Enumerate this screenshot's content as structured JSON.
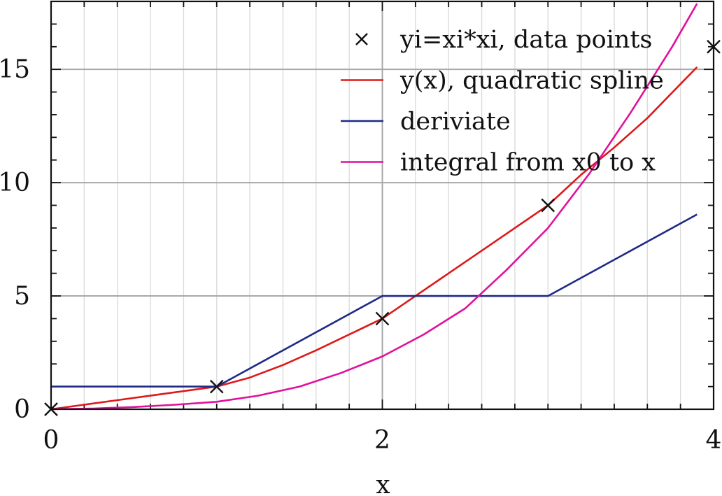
{
  "chart_data": {
    "type": "line",
    "title": "",
    "xlabel": "x",
    "ylabel": "",
    "xlim": [
      0,
      4
    ],
    "ylim": [
      0,
      18
    ],
    "grid": "major and minor",
    "legend_position": "top-right",
    "x_ticks": [
      {
        "value": 0,
        "label": "0"
      },
      {
        "value": 2,
        "label": "2"
      },
      {
        "value": 4,
        "label": "4"
      }
    ],
    "y_ticks": [
      {
        "value": 0,
        "label": "0"
      },
      {
        "value": 5,
        "label": "5"
      },
      {
        "value": 10,
        "label": "10"
      },
      {
        "value": 15,
        "label": "15"
      }
    ],
    "series": [
      {
        "name": "yi=xi*xi, data points",
        "kind": "markers",
        "marker": "x",
        "color": "#111111",
        "points": [
          [
            0,
            0
          ],
          [
            1,
            1
          ],
          [
            2,
            4
          ],
          [
            3,
            9
          ],
          [
            4,
            16
          ]
        ]
      },
      {
        "name": "y(x), quadratic spline",
        "kind": "line",
        "color": "#dd1a1a",
        "points": [
          [
            0,
            0
          ],
          [
            0.2,
            0.2
          ],
          [
            0.4,
            0.4
          ],
          [
            0.6,
            0.6
          ],
          [
            0.8,
            0.8
          ],
          [
            1.0,
            1.0
          ],
          [
            1.2,
            1.4
          ],
          [
            1.4,
            1.95
          ],
          [
            1.6,
            2.6
          ],
          [
            1.8,
            3.3
          ],
          [
            2.0,
            4.0
          ],
          [
            2.2,
            5.0
          ],
          [
            2.4,
            6.0
          ],
          [
            2.6,
            7.0
          ],
          [
            2.8,
            8.0
          ],
          [
            3.0,
            9.0
          ],
          [
            3.2,
            10.35
          ],
          [
            3.4,
            11.55
          ],
          [
            3.6,
            12.85
          ],
          [
            3.8,
            14.35
          ],
          [
            3.9,
            15.1
          ]
        ]
      },
      {
        "name": "deriviate",
        "kind": "line",
        "color": "#1f2a87",
        "points": [
          [
            0,
            1
          ],
          [
            1,
            1
          ],
          [
            2,
            5
          ],
          [
            3,
            5
          ],
          [
            3.9,
            8.6
          ]
        ]
      },
      {
        "name": "integral from x0 to x",
        "kind": "line",
        "color": "#e0119c",
        "points": [
          [
            0,
            0
          ],
          [
            0.25,
            0.03
          ],
          [
            0.5,
            0.1
          ],
          [
            0.75,
            0.2
          ],
          [
            1.0,
            0.33
          ],
          [
            1.25,
            0.6
          ],
          [
            1.5,
            1.0
          ],
          [
            1.75,
            1.6
          ],
          [
            2.0,
            2.33
          ],
          [
            2.25,
            3.3
          ],
          [
            2.5,
            4.45
          ],
          [
            2.75,
            6.15
          ],
          [
            3.0,
            8.0
          ],
          [
            3.25,
            10.4
          ],
          [
            3.5,
            13.1
          ],
          [
            3.75,
            16.0
          ],
          [
            3.9,
            17.9
          ]
        ]
      }
    ]
  }
}
